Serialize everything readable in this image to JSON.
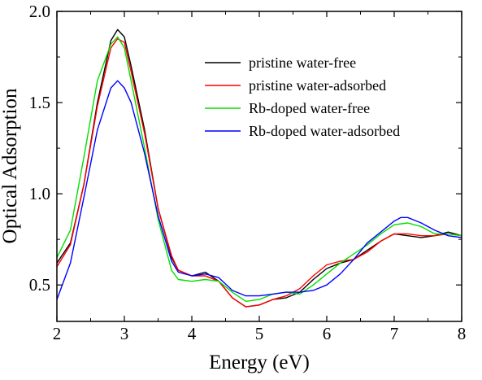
{
  "chart_data": {
    "type": "line",
    "title": "",
    "xlabel": "Energy (eV)",
    "ylabel": "Optical Adsorption",
    "xlim": [
      2,
      8
    ],
    "ylim": [
      0.3,
      2.0
    ],
    "x_ticks": [
      2,
      3,
      4,
      5,
      6,
      7,
      8
    ],
    "y_ticks": [
      0.5,
      1.0,
      1.5,
      2.0
    ],
    "x_tick_labels": [
      "2",
      "3",
      "4",
      "5",
      "6",
      "7",
      "8"
    ],
    "y_tick_labels": [
      "0.5",
      "1.0",
      "1.5",
      "2.0"
    ],
    "grid": false,
    "legend_position": "upper-right",
    "series": [
      {
        "name": "pristine water-free",
        "color": "#000000",
        "points": [
          [
            2.0,
            0.62
          ],
          [
            2.2,
            0.73
          ],
          [
            2.4,
            1.05
          ],
          [
            2.6,
            1.5
          ],
          [
            2.8,
            1.84
          ],
          [
            2.9,
            1.9
          ],
          [
            3.0,
            1.86
          ],
          [
            3.1,
            1.7
          ],
          [
            3.3,
            1.35
          ],
          [
            3.5,
            0.92
          ],
          [
            3.7,
            0.65
          ],
          [
            3.8,
            0.58
          ],
          [
            4.0,
            0.55
          ],
          [
            4.2,
            0.57
          ],
          [
            4.4,
            0.52
          ],
          [
            4.6,
            0.43
          ],
          [
            4.8,
            0.38
          ],
          [
            5.0,
            0.39
          ],
          [
            5.2,
            0.42
          ],
          [
            5.4,
            0.43
          ],
          [
            5.6,
            0.46
          ],
          [
            5.8,
            0.53
          ],
          [
            6.0,
            0.59
          ],
          [
            6.2,
            0.62
          ],
          [
            6.4,
            0.64
          ],
          [
            6.6,
            0.69
          ],
          [
            6.8,
            0.74
          ],
          [
            7.0,
            0.78
          ],
          [
            7.2,
            0.77
          ],
          [
            7.4,
            0.76
          ],
          [
            7.6,
            0.77
          ],
          [
            7.8,
            0.79
          ],
          [
            8.0,
            0.77
          ]
        ]
      },
      {
        "name": "pristine water-adsorbed",
        "color": "#ff0000",
        "points": [
          [
            2.0,
            0.6
          ],
          [
            2.2,
            0.72
          ],
          [
            2.4,
            1.05
          ],
          [
            2.6,
            1.48
          ],
          [
            2.8,
            1.8
          ],
          [
            2.9,
            1.85
          ],
          [
            3.0,
            1.83
          ],
          [
            3.1,
            1.67
          ],
          [
            3.3,
            1.33
          ],
          [
            3.5,
            0.92
          ],
          [
            3.7,
            0.66
          ],
          [
            3.8,
            0.58
          ],
          [
            4.0,
            0.55
          ],
          [
            4.2,
            0.55
          ],
          [
            4.4,
            0.52
          ],
          [
            4.6,
            0.43
          ],
          [
            4.8,
            0.38
          ],
          [
            5.0,
            0.39
          ],
          [
            5.2,
            0.42
          ],
          [
            5.4,
            0.44
          ],
          [
            5.6,
            0.48
          ],
          [
            5.8,
            0.55
          ],
          [
            6.0,
            0.61
          ],
          [
            6.2,
            0.63
          ],
          [
            6.4,
            0.64
          ],
          [
            6.6,
            0.68
          ],
          [
            6.8,
            0.74
          ],
          [
            7.0,
            0.78
          ],
          [
            7.2,
            0.78
          ],
          [
            7.4,
            0.77
          ],
          [
            7.6,
            0.77
          ],
          [
            7.8,
            0.78
          ],
          [
            8.0,
            0.77
          ]
        ]
      },
      {
        "name": "Rb-doped water-free",
        "color": "#00e000",
        "points": [
          [
            2.0,
            0.65
          ],
          [
            2.2,
            0.8
          ],
          [
            2.4,
            1.2
          ],
          [
            2.6,
            1.62
          ],
          [
            2.8,
            1.82
          ],
          [
            2.9,
            1.86
          ],
          [
            3.0,
            1.8
          ],
          [
            3.1,
            1.62
          ],
          [
            3.3,
            1.25
          ],
          [
            3.5,
            0.86
          ],
          [
            3.7,
            0.58
          ],
          [
            3.8,
            0.53
          ],
          [
            4.0,
            0.52
          ],
          [
            4.2,
            0.53
          ],
          [
            4.4,
            0.52
          ],
          [
            4.6,
            0.46
          ],
          [
            4.8,
            0.41
          ],
          [
            5.0,
            0.42
          ],
          [
            5.2,
            0.45
          ],
          [
            5.4,
            0.46
          ],
          [
            5.6,
            0.45
          ],
          [
            5.8,
            0.5
          ],
          [
            6.0,
            0.56
          ],
          [
            6.2,
            0.62
          ],
          [
            6.4,
            0.67
          ],
          [
            6.6,
            0.72
          ],
          [
            6.8,
            0.78
          ],
          [
            7.0,
            0.83
          ],
          [
            7.2,
            0.84
          ],
          [
            7.4,
            0.82
          ],
          [
            7.6,
            0.78
          ],
          [
            7.8,
            0.78
          ],
          [
            8.0,
            0.77
          ]
        ]
      },
      {
        "name": "Rb-doped water-adsorbed",
        "color": "#0000ff",
        "points": [
          [
            2.0,
            0.42
          ],
          [
            2.2,
            0.62
          ],
          [
            2.4,
            0.98
          ],
          [
            2.6,
            1.35
          ],
          [
            2.8,
            1.58
          ],
          [
            2.9,
            1.62
          ],
          [
            3.0,
            1.58
          ],
          [
            3.1,
            1.5
          ],
          [
            3.3,
            1.22
          ],
          [
            3.5,
            0.88
          ],
          [
            3.7,
            0.63
          ],
          [
            3.8,
            0.57
          ],
          [
            4.0,
            0.55
          ],
          [
            4.2,
            0.56
          ],
          [
            4.4,
            0.54
          ],
          [
            4.6,
            0.47
          ],
          [
            4.8,
            0.44
          ],
          [
            5.0,
            0.44
          ],
          [
            5.2,
            0.45
          ],
          [
            5.4,
            0.46
          ],
          [
            5.6,
            0.46
          ],
          [
            5.8,
            0.47
          ],
          [
            6.0,
            0.5
          ],
          [
            6.2,
            0.56
          ],
          [
            6.4,
            0.64
          ],
          [
            6.6,
            0.73
          ],
          [
            6.8,
            0.79
          ],
          [
            7.0,
            0.85
          ],
          [
            7.1,
            0.87
          ],
          [
            7.2,
            0.87
          ],
          [
            7.4,
            0.84
          ],
          [
            7.6,
            0.8
          ],
          [
            7.8,
            0.77
          ],
          [
            8.0,
            0.76
          ]
        ]
      }
    ]
  }
}
